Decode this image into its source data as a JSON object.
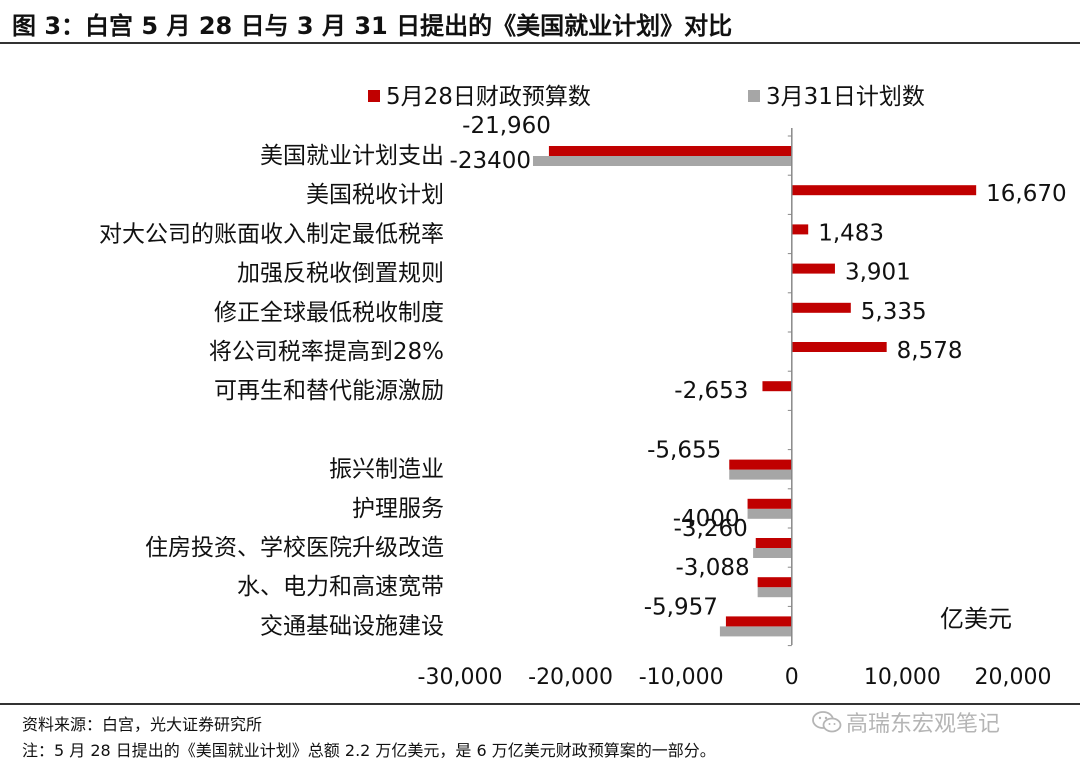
{
  "header": {
    "title": "图 3：白宫 5 月 28 日与 3 月 31 日提出的《美国就业计划》对比"
  },
  "footer": {
    "source": "资料来源：白宫，光大证券研究所",
    "note": "注：5 月 28 日提出的《美国就业计划》总额 2.2 万亿美元，是 6 万亿美元财政预算案的一部分。",
    "watermark": "高瑞东宏观笔记",
    "watermark_icon": "wechat-icon"
  },
  "chart_data": {
    "type": "bar",
    "orientation": "horizontal",
    "unit_label": "亿美元",
    "xlim": [
      -30000,
      20000
    ],
    "xticks": [
      -30000,
      -20000,
      -10000,
      0,
      10000,
      20000
    ],
    "xtick_labels": [
      "-30,000",
      "-20,000",
      "-10,000",
      "0",
      "10,000",
      "20,000"
    ],
    "grid": false,
    "legend_position": "top",
    "colors": {
      "may28": "#c00000",
      "mar31": "#a6a6a6"
    },
    "categories": [
      "美国就业计划支出",
      "美国税收计划",
      "对大公司的账面收入制定最低税率",
      "加强反税收倒置规则",
      "修正全球最低税收制度",
      "将公司税率提高到28%",
      "可再生和替代能源激励",
      "",
      "振兴制造业",
      "护理服务",
      "住房投资、学校医院升级改造",
      "水、电力和高速宽带",
      "交通基础设施建设"
    ],
    "series": [
      {
        "name": "5月28日财政预算数",
        "values": [
          -21960,
          16670,
          1483,
          3901,
          5335,
          8578,
          -2653,
          null,
          -5655,
          -4000,
          -3260,
          -3088,
          -5957
        ],
        "labels": [
          "-21,960",
          "16,670",
          "1,483",
          "3,901",
          "5,335",
          "8,578",
          "-2,653",
          "",
          "-5,655",
          "",
          "-3,260",
          "-3,088",
          "-5,957"
        ]
      },
      {
        "name": "3月31日计划数",
        "values": [
          -23400,
          null,
          null,
          null,
          null,
          null,
          null,
          null,
          -5655,
          -4000,
          -3500,
          -3088,
          -6500
        ],
        "labels": [
          "-23400",
          "",
          "",
          "",
          "",
          "",
          "",
          "",
          "",
          "-4000",
          "",
          "",
          ""
        ]
      }
    ]
  }
}
